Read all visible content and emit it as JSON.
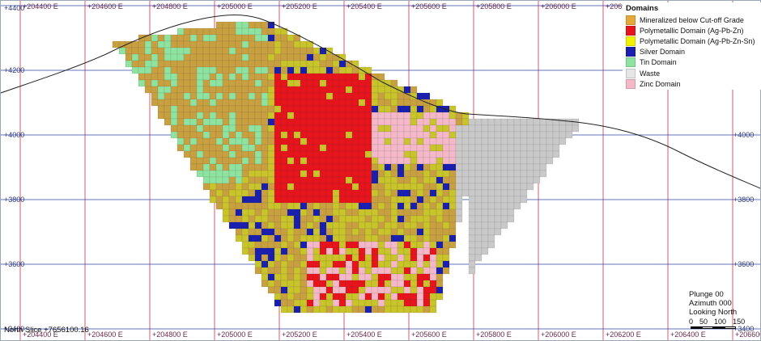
{
  "x_axis": {
    "labels": [
      "+204400 E",
      "+204600 E",
      "+204800 E",
      "+205000 E",
      "+205200 E",
      "+205400 E",
      "+205600 E",
      "+205800 E",
      "+206000 E",
      "+206200 E",
      "+206400 E",
      "+206600 E"
    ]
  },
  "y_axis": {
    "labels": [
      "+4400",
      "+4200",
      "+4000",
      "+3800",
      "+3600",
      "+3400"
    ]
  },
  "legend": {
    "title": "Domains",
    "items": [
      {
        "label": "Mineralized below Cut-off Grade",
        "color": "#e5a93a"
      },
      {
        "label": "Polymetallic Domain (Ag-Pb-Zn)",
        "color": "#e8141c"
      },
      {
        "label": "Polymetallic Domain (Ag-Pb-Zn-Sn)",
        "color": "#f2f200"
      },
      {
        "label": "Silver Domain",
        "color": "#1a1fb0"
      },
      {
        "label": "Tin Domain",
        "color": "#8fe3a0"
      },
      {
        "label": "Waste",
        "color": "#e6e6e6"
      },
      {
        "label": "Zinc Domain",
        "color": "#f4b8c8"
      }
    ]
  },
  "view": {
    "plunge": "Plunge 00",
    "azimuth": "Azimuth 000",
    "looking": "Looking North"
  },
  "scale_bar": {
    "labels": [
      "0",
      "50",
      "100",
      "150"
    ]
  },
  "slice_label": "North Slice +7656100.16",
  "colors": {
    "grid_vertical": "#cc3344",
    "grid_horizontal": "#3344aa",
    "topography": "#222222",
    "block_body": "#c8c42a",
    "block_orange": "#c9a040",
    "block_gray": "#c9c9c9"
  }
}
